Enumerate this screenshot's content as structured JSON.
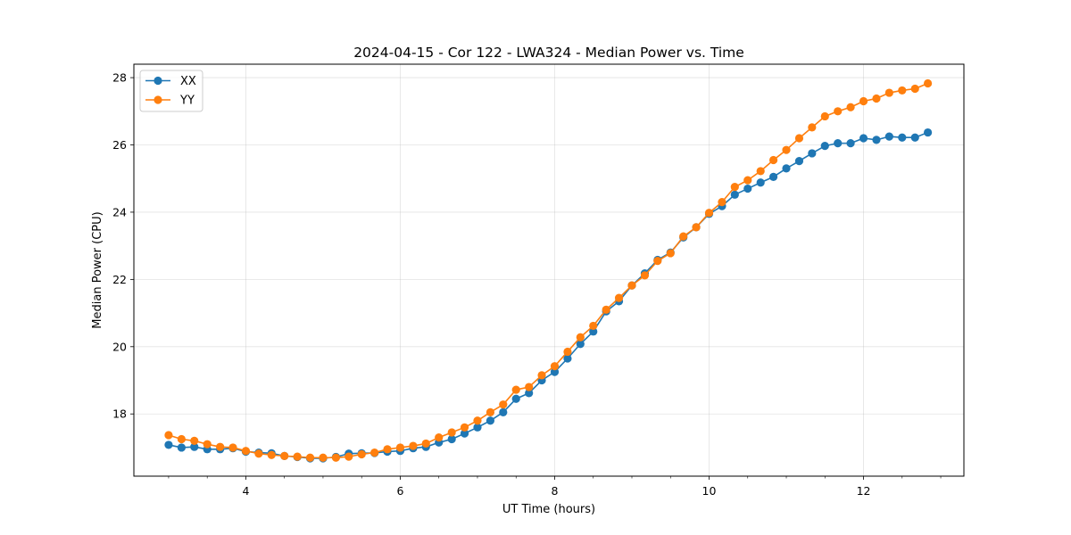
{
  "chart_data": {
    "type": "line",
    "title": "2024-04-15 - Cor 122 - LWA324 - Median Power vs. Time",
    "xlabel": "UT Time (hours)",
    "ylabel": "Median Power (CPU)",
    "xlim": [
      2.55,
      13.3
    ],
    "ylim": [
      16.15,
      28.4
    ],
    "xticks": [
      4,
      6,
      8,
      10,
      12
    ],
    "yticks": [
      18,
      20,
      22,
      24,
      26,
      28
    ],
    "grid": true,
    "legend_position": "top-left",
    "x": [
      3.0,
      3.167,
      3.333,
      3.5,
      3.667,
      3.833,
      4.0,
      4.167,
      4.333,
      4.5,
      4.667,
      4.833,
      5.0,
      5.167,
      5.333,
      5.5,
      5.667,
      5.833,
      6.0,
      6.167,
      6.333,
      6.5,
      6.667,
      6.833,
      7.0,
      7.167,
      7.333,
      7.5,
      7.667,
      7.833,
      8.0,
      8.167,
      8.333,
      8.5,
      8.667,
      8.833,
      9.0,
      9.167,
      9.333,
      9.5,
      9.667,
      9.833,
      10.0,
      10.167,
      10.333,
      10.5,
      10.667,
      10.833,
      11.0,
      11.167,
      11.333,
      11.5,
      11.667,
      11.833,
      12.0,
      12.167,
      12.333,
      12.5,
      12.667,
      12.833
    ],
    "series": [
      {
        "name": "XX",
        "color": "#1f77b4",
        "values": [
          17.08,
          17.0,
          17.02,
          16.95,
          16.95,
          16.98,
          16.88,
          16.85,
          16.83,
          16.75,
          16.72,
          16.68,
          16.68,
          16.72,
          16.82,
          16.83,
          16.84,
          16.88,
          16.9,
          16.98,
          17.02,
          17.15,
          17.25,
          17.42,
          17.6,
          17.8,
          18.05,
          18.45,
          18.62,
          19.0,
          19.25,
          19.65,
          20.08,
          20.45,
          21.05,
          21.35,
          21.82,
          22.18,
          22.58,
          22.8,
          23.25,
          23.55,
          23.95,
          24.18,
          24.52,
          24.7,
          24.88,
          25.05,
          25.3,
          25.52,
          25.75,
          25.97,
          26.05,
          26.05,
          26.2,
          26.15,
          26.25,
          26.22,
          26.22,
          26.37
        ]
      },
      {
        "name": "YY",
        "color": "#ff7f0e",
        "values": [
          17.37,
          17.25,
          17.2,
          17.1,
          17.02,
          17.0,
          16.9,
          16.82,
          16.78,
          16.75,
          16.73,
          16.7,
          16.7,
          16.7,
          16.73,
          16.8,
          16.85,
          16.95,
          17.0,
          17.05,
          17.12,
          17.3,
          17.45,
          17.6,
          17.8,
          18.05,
          18.28,
          18.72,
          18.8,
          19.15,
          19.42,
          19.85,
          20.28,
          20.62,
          21.1,
          21.45,
          21.82,
          22.12,
          22.55,
          22.78,
          23.28,
          23.55,
          23.98,
          24.3,
          24.75,
          24.95,
          25.22,
          25.55,
          25.85,
          26.2,
          26.52,
          26.85,
          27.0,
          27.12,
          27.3,
          27.38,
          27.55,
          27.62,
          27.67,
          27.83
        ]
      }
    ]
  }
}
